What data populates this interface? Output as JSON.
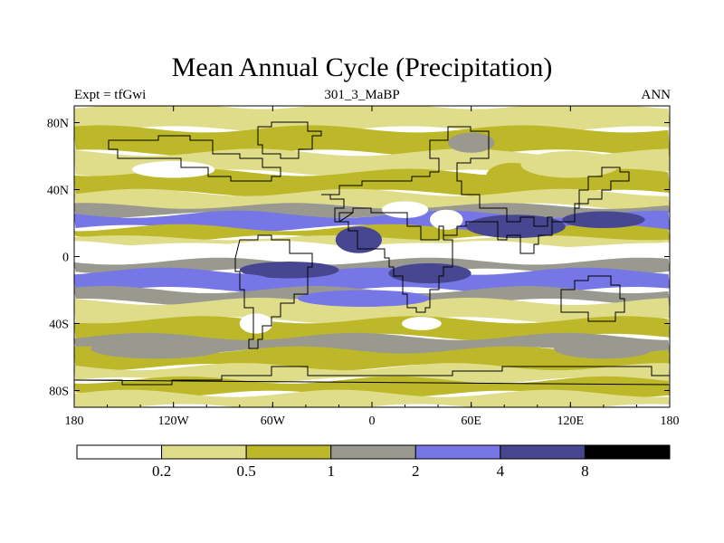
{
  "chart_data": {
    "type": "heatmap",
    "title": "Mean Annual Cycle (Precipitation)",
    "subtitle_left": "Expt = tfGwi",
    "subtitle_center": "301_3_MaBP",
    "subtitle_right": "ANN",
    "x_ticks": [
      "180",
      "120W",
      "60W",
      "0",
      "60E",
      "120E",
      "180"
    ],
    "y_ticks": [
      "80N",
      "40N",
      "0",
      "40S",
      "80S"
    ],
    "x_range": [
      -180,
      180
    ],
    "y_range": [
      -90,
      90
    ],
    "colorbar": {
      "levels": [
        "0.2",
        "0.5",
        "1",
        "2",
        "4",
        "8"
      ],
      "colors": [
        "#ffffff",
        "#e0dd8a",
        "#bdb829",
        "#999990",
        "#7676e6",
        "#474791",
        "#000000"
      ]
    },
    "precip_bands": [
      {
        "lat_min": 76,
        "lat_max": 90,
        "class": 1
      },
      {
        "lat_min": 62,
        "lat_max": 76,
        "class": 2
      },
      {
        "lat_min": 50,
        "lat_max": 62,
        "class": 1
      },
      {
        "lat_min": 38,
        "lat_max": 50,
        "class": 2
      },
      {
        "lat_min": 30,
        "lat_max": 38,
        "class": 1
      },
      {
        "lat_min": 25,
        "lat_max": 30,
        "class": 3
      },
      {
        "lat_min": 17,
        "lat_max": 25,
        "class": 4
      },
      {
        "lat_min": 11,
        "lat_max": 17,
        "class": 2
      },
      {
        "lat_min": 7,
        "lat_max": 11,
        "class": 1
      },
      {
        "lat_min": -3,
        "lat_max": 7,
        "class": 0
      },
      {
        "lat_min": -9,
        "lat_max": -3,
        "class": 3
      },
      {
        "lat_min": -20,
        "lat_max": -9,
        "class": 4
      },
      {
        "lat_min": -27,
        "lat_max": -20,
        "class": 3
      },
      {
        "lat_min": -38,
        "lat_max": -27,
        "class": 1
      },
      {
        "lat_min": -48,
        "lat_max": -38,
        "class": 2
      },
      {
        "lat_min": -56,
        "lat_max": -48,
        "class": 3
      },
      {
        "lat_min": -66,
        "lat_max": -56,
        "class": 2
      },
      {
        "lat_min": -74,
        "lat_max": -66,
        "class": 1
      },
      {
        "lat_min": -82,
        "lat_max": -74,
        "class": 2
      },
      {
        "lat_min": -90,
        "lat_max": -82,
        "class": 1
      }
    ],
    "precip_patches": [
      {
        "lon": 87,
        "lat": 18,
        "rlon": 30,
        "rlat": 7,
        "class": 5
      },
      {
        "lon": -8,
        "lat": 10,
        "rlon": 14,
        "rlat": 8,
        "class": 5
      },
      {
        "lon": 35,
        "lat": -10,
        "rlon": 25,
        "rlat": 6,
        "class": 5
      },
      {
        "lon": -50,
        "lat": -8,
        "rlon": 30,
        "rlat": 5,
        "class": 5
      },
      {
        "lon": 140,
        "lat": 22,
        "rlon": 25,
        "rlat": 5,
        "class": 5
      },
      {
        "lon": -5,
        "lat": -25,
        "rlon": 40,
        "rlat": 5,
        "class": 4
      },
      {
        "lon": -85,
        "lat": -15,
        "rlon": 25,
        "rlat": 5,
        "class": 4
      },
      {
        "lon": 30,
        "lat": -40,
        "rlon": 12,
        "rlat": 4,
        "class": 0
      },
      {
        "lon": -70,
        "lat": -40,
        "rlon": 10,
        "rlat": 6,
        "class": 0
      },
      {
        "lon": 45,
        "lat": 22,
        "rlon": 10,
        "rlat": 6,
        "class": 0
      },
      {
        "lon": 85,
        "lat": 48,
        "rlon": 16,
        "rlat": 8,
        "class": 2
      },
      {
        "lon": 60,
        "lat": 68,
        "rlon": 14,
        "rlat": 6,
        "class": 3
      },
      {
        "lon": 120,
        "lat": 55,
        "rlon": 30,
        "rlat": 8,
        "class": 1
      },
      {
        "lon": -130,
        "lat": -55,
        "rlon": 40,
        "rlat": 6,
        "class": 3
      },
      {
        "lon": 140,
        "lat": -55,
        "rlon": 30,
        "rlat": 6,
        "class": 3
      },
      {
        "lon": -120,
        "lat": 52,
        "rlon": 25,
        "rlat": 5,
        "class": 0
      },
      {
        "lon": 20,
        "lat": 28,
        "rlon": 14,
        "rlat": 5,
        "class": 0
      }
    ],
    "continent_outlines": [
      [
        [
          -70,
          78
        ],
        [
          -60,
          80
        ],
        [
          -50,
          80
        ],
        [
          -40,
          76
        ],
        [
          -30,
          72
        ],
        [
          -35,
          65
        ],
        [
          -45,
          60
        ],
        [
          -55,
          62
        ],
        [
          -65,
          66
        ],
        [
          -70,
          72
        ]
      ],
      [
        [
          -30,
          38
        ],
        [
          -20,
          42
        ],
        [
          -5,
          44
        ],
        [
          10,
          45
        ],
        [
          25,
          48
        ],
        [
          35,
          50
        ],
        [
          40,
          60
        ],
        [
          35,
          70
        ],
        [
          45,
          78
        ],
        [
          60,
          75
        ],
        [
          70,
          72
        ],
        [
          70,
          60
        ],
        [
          60,
          55
        ],
        [
          52,
          45
        ],
        [
          55,
          38
        ],
        [
          65,
          30
        ],
        [
          75,
          30
        ],
        [
          82,
          22
        ],
        [
          90,
          24
        ],
        [
          98,
          18
        ],
        [
          105,
          24
        ],
        [
          110,
          22
        ],
        [
          122,
          30
        ],
        [
          125,
          40
        ],
        [
          130,
          48
        ],
        [
          140,
          52
        ],
        [
          150,
          50
        ],
        [
          155,
          44
        ],
        [
          145,
          40
        ],
        [
          138,
          34
        ],
        [
          130,
          32
        ],
        [
          122,
          22
        ],
        [
          110,
          14
        ],
        [
          100,
          8
        ],
        [
          98,
          2
        ],
        [
          90,
          12
        ],
        [
          82,
          10
        ],
        [
          76,
          20
        ],
        [
          68,
          22
        ],
        [
          58,
          18
        ],
        [
          52,
          12
        ],
        [
          44,
          18
        ],
        [
          40,
          10
        ],
        [
          30,
          18
        ],
        [
          22,
          25
        ],
        [
          12,
          26
        ],
        [
          0,
          28
        ],
        [
          -12,
          25
        ],
        [
          -20,
          20
        ],
        [
          -22,
          28
        ],
        [
          -18,
          33
        ],
        [
          -25,
          36
        ]
      ],
      [
        [
          -20,
          20
        ],
        [
          -15,
          15
        ],
        [
          -10,
          10
        ],
        [
          -8,
          5
        ],
        [
          -2,
          5
        ],
        [
          5,
          4
        ],
        [
          8,
          0
        ],
        [
          10,
          -5
        ],
        [
          12,
          -12
        ],
        [
          18,
          -22
        ],
        [
          22,
          -30
        ],
        [
          26,
          -34
        ],
        [
          32,
          -30
        ],
        [
          35,
          -20
        ],
        [
          40,
          -12
        ],
        [
          42,
          -5
        ],
        [
          48,
          4
        ],
        [
          50,
          10
        ],
        [
          44,
          18
        ],
        [
          40,
          10
        ],
        [
          30,
          18
        ],
        [
          22,
          25
        ],
        [
          12,
          26
        ],
        [
          0,
          28
        ],
        [
          -12,
          25
        ]
      ],
      [
        [
          -80,
          10
        ],
        [
          -70,
          12
        ],
        [
          -60,
          10
        ],
        [
          -50,
          2
        ],
        [
          -36,
          -5
        ],
        [
          -38,
          -15
        ],
        [
          -40,
          -22
        ],
        [
          -48,
          -28
        ],
        [
          -55,
          -35
        ],
        [
          -60,
          -42
        ],
        [
          -65,
          -50
        ],
        [
          -70,
          -55
        ],
        [
          -74,
          -50
        ],
        [
          -73,
          -40
        ],
        [
          -72,
          -30
        ],
        [
          -76,
          -20
        ],
        [
          -80,
          -10
        ],
        [
          -82,
          -2
        ]
      ],
      [
        [
          -140,
          60
        ],
        [
          -125,
          58
        ],
        [
          -115,
          52
        ],
        [
          -100,
          48
        ],
        [
          -85,
          44
        ],
        [
          -75,
          45
        ],
        [
          -60,
          48
        ],
        [
          -55,
          52
        ],
        [
          -65,
          58
        ],
        [
          -80,
          62
        ],
        [
          -95,
          70
        ],
        [
          -110,
          72
        ],
        [
          -130,
          70
        ],
        [
          -150,
          70
        ],
        [
          -160,
          64
        ],
        [
          -155,
          58
        ]
      ],
      [
        [
          115,
          -20
        ],
        [
          122,
          -15
        ],
        [
          130,
          -12
        ],
        [
          140,
          -12
        ],
        [
          145,
          -18
        ],
        [
          150,
          -25
        ],
        [
          152,
          -32
        ],
        [
          148,
          -38
        ],
        [
          140,
          -38
        ],
        [
          130,
          -33
        ],
        [
          118,
          -34
        ],
        [
          114,
          -28
        ]
      ],
      [
        [
          -180,
          -74
        ],
        [
          -150,
          -76
        ],
        [
          -120,
          -74
        ],
        [
          -90,
          -72
        ],
        [
          -60,
          -66
        ],
        [
          -40,
          -70
        ],
        [
          -10,
          -72
        ],
        [
          20,
          -70
        ],
        [
          50,
          -68
        ],
        [
          80,
          -67
        ],
        [
          110,
          -66
        ],
        [
          140,
          -67
        ],
        [
          170,
          -72
        ],
        [
          180,
          -76
        ]
      ]
    ]
  }
}
